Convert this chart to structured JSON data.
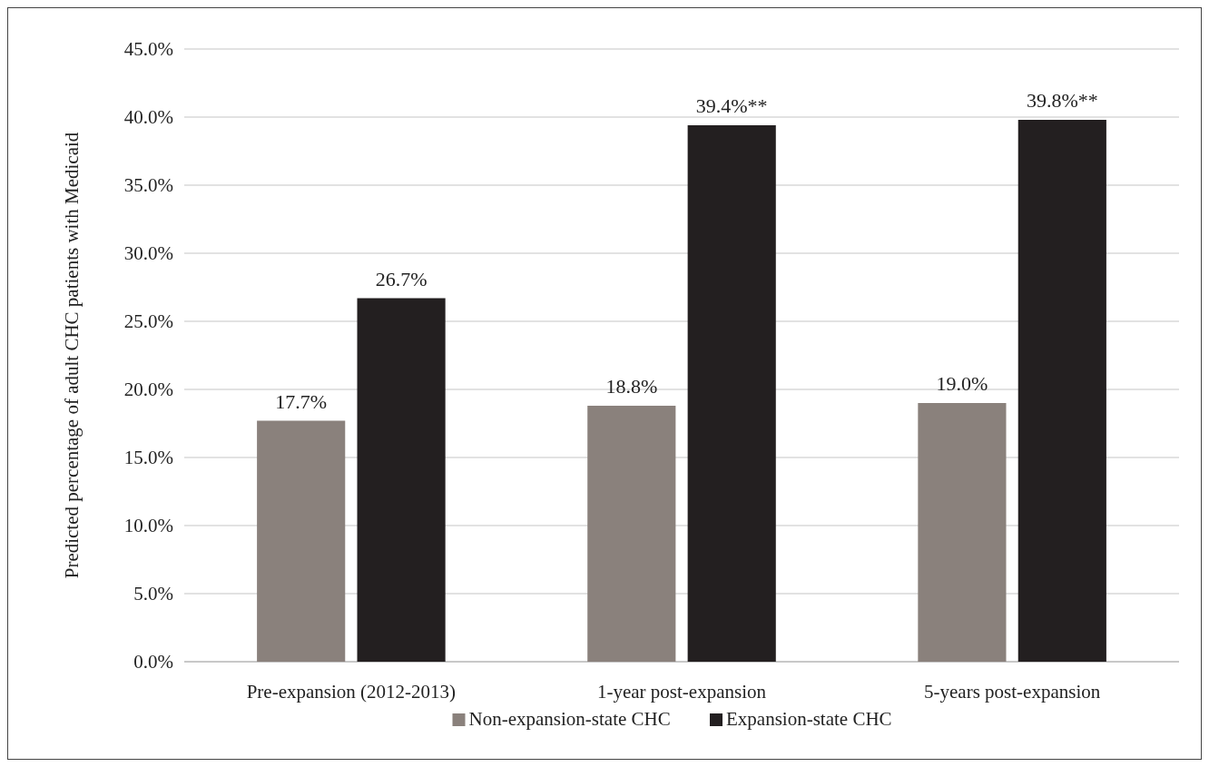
{
  "chart_data": {
    "type": "bar",
    "ylabel": "Predicted percentage of adult CHC patients with Medicaid",
    "categories": [
      "Pre-expansion (2012-2013)",
      "1-year post-expansion",
      "5-years post-expansion"
    ],
    "series": [
      {
        "name": "Non-expansion-state CHC",
        "color": "#8a817c",
        "values": [
          17.7,
          18.8,
          19.0
        ],
        "value_labels": [
          "17.7%",
          "18.8%",
          "19.0%"
        ]
      },
      {
        "name": "Expansion-state CHC",
        "color": "#231f20",
        "values": [
          26.7,
          39.4,
          39.8
        ],
        "value_labels": [
          "26.7%",
          "39.4%**",
          "39.8%**"
        ]
      }
    ],
    "ylim": [
      0,
      45
    ],
    "yticks": [
      {
        "value": 0,
        "label": "0.0%"
      },
      {
        "value": 5,
        "label": "5.0%"
      },
      {
        "value": 10,
        "label": "10.0%"
      },
      {
        "value": 15,
        "label": "15.0%"
      },
      {
        "value": 20,
        "label": "20.0%"
      },
      {
        "value": 25,
        "label": "25.0%"
      },
      {
        "value": 30,
        "label": "30.0%"
      },
      {
        "value": 35,
        "label": "35.0%"
      },
      {
        "value": 40,
        "label": "40.0%"
      },
      {
        "value": 45,
        "label": "45.0%"
      }
    ],
    "grid": "y",
    "legend": "bottom"
  }
}
